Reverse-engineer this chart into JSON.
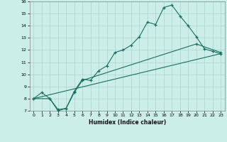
{
  "xlabel": "Humidex (Indice chaleur)",
  "bg_color": "#cceee8",
  "grid_color": "#aad4ce",
  "line_color": "#1a6e62",
  "xlim": [
    -0.5,
    23.5
  ],
  "ylim": [
    7,
    16
  ],
  "xticks": [
    0,
    1,
    2,
    3,
    4,
    5,
    6,
    7,
    8,
    9,
    10,
    11,
    12,
    13,
    14,
    15,
    16,
    17,
    18,
    19,
    20,
    21,
    22,
    23
  ],
  "yticks": [
    7,
    8,
    9,
    10,
    11,
    12,
    13,
    14,
    15,
    16
  ],
  "line1_x": [
    0,
    1,
    2,
    3,
    4,
    5,
    6,
    7,
    8,
    9,
    10,
    11,
    12,
    13,
    14,
    15,
    16,
    17,
    18,
    19,
    20,
    21,
    22,
    23
  ],
  "line1_y": [
    8.0,
    8.5,
    8.0,
    7.0,
    7.2,
    8.6,
    9.6,
    9.5,
    10.3,
    10.7,
    11.8,
    12.0,
    12.4,
    13.1,
    14.3,
    14.1,
    15.5,
    15.7,
    14.8,
    14.0,
    13.1,
    12.1,
    11.9,
    11.7
  ],
  "line2_x": [
    0,
    2,
    3,
    4,
    5,
    6,
    20,
    23
  ],
  "line2_y": [
    8.0,
    8.0,
    7.1,
    7.2,
    8.5,
    9.5,
    12.5,
    11.8
  ],
  "line3_x": [
    0,
    23
  ],
  "line3_y": [
    8.0,
    11.7
  ]
}
